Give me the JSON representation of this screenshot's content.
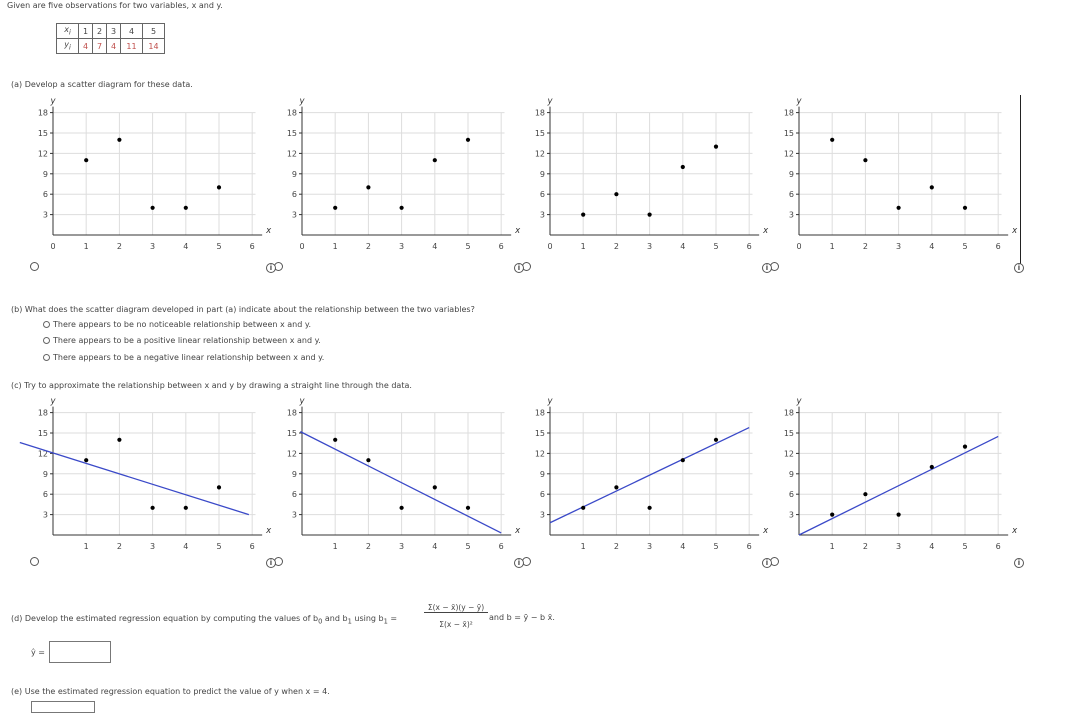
{
  "intro": "Given are five observations for two variables, x and y.",
  "table": {
    "x_label": "x",
    "x_sub": "i",
    "y_label": "y",
    "y_sub": "i",
    "x": [
      "1",
      "2",
      "3",
      "4",
      "5"
    ],
    "y": [
      "4",
      "7",
      "4",
      "11",
      "14"
    ]
  },
  "part_a": "(a)  Develop a scatter diagram for these data.",
  "part_b": {
    "question": "(b)  What does the scatter diagram developed in part (a) indicate about the relationship between the two variables?",
    "options": [
      "There appears to be no noticeable relationship between x and y.",
      "There appears to be a positive linear relationship between x and y.",
      "There appears to be a negative linear relationship between x and y."
    ]
  },
  "part_c": "(c)  Try to approximate the relationship between x and y by drawing a straight line through the data.",
  "part_d": {
    "prefix": "(d)  Develop the estimated regression equation by computing the values of b",
    "mid": "and b",
    "using": "using b",
    "numerator": "Σ(x  − x̄)(y  − ȳ)",
    "denominator": "Σ(x  − x̄)²",
    "suffix": "and b  = ȳ − b x̄.",
    "yhat_label": "ŷ ="
  },
  "part_e": "(e)  Use the estimated regression equation to predict the value of y when x = 4.",
  "axis_labels": {
    "x": "x",
    "y": "y"
  },
  "x_ticks": [
    "0",
    "1",
    "2",
    "3",
    "4",
    "5",
    "6"
  ],
  "y_ticks": [
    "3",
    "6",
    "9",
    "12",
    "15",
    "18"
  ],
  "chart_data": [
    {
      "type": "scatter",
      "xlabel": "x",
      "ylabel": "y",
      "xlim": [
        0,
        6
      ],
      "ylim": [
        0,
        18
      ],
      "points": [
        [
          1,
          11
        ],
        [
          2,
          14
        ],
        [
          3,
          4
        ],
        [
          4,
          4
        ],
        [
          5,
          7
        ]
      ]
    },
    {
      "type": "scatter",
      "xlabel": "x",
      "ylabel": "y",
      "xlim": [
        0,
        6
      ],
      "ylim": [
        0,
        18
      ],
      "points": [
        [
          1,
          4
        ],
        [
          2,
          7
        ],
        [
          3,
          4
        ],
        [
          4,
          11
        ],
        [
          5,
          14
        ]
      ]
    },
    {
      "type": "scatter",
      "xlabel": "x",
      "ylabel": "y",
      "xlim": [
        0,
        6
      ],
      "ylim": [
        0,
        18
      ],
      "points": [
        [
          1,
          3
        ],
        [
          2,
          6
        ],
        [
          3,
          3
        ],
        [
          4,
          10
        ],
        [
          5,
          13
        ]
      ]
    },
    {
      "type": "scatter",
      "xlabel": "x",
      "ylabel": "y",
      "xlim": [
        0,
        6
      ],
      "ylim": [
        0,
        18
      ],
      "points": [
        [
          1,
          14
        ],
        [
          2,
          11
        ],
        [
          3,
          4
        ],
        [
          4,
          7
        ],
        [
          5,
          4
        ]
      ]
    },
    {
      "type": "scatter",
      "xlabel": "x",
      "ylabel": "y",
      "xlim": [
        0,
        6
      ],
      "ylim": [
        0,
        18
      ],
      "points": [
        [
          1,
          11
        ],
        [
          2,
          14
        ],
        [
          3,
          4
        ],
        [
          4,
          4
        ],
        [
          5,
          7
        ]
      ],
      "line": [
        [
          -1,
          13.6
        ],
        [
          5.9,
          3
        ]
      ]
    },
    {
      "type": "scatter",
      "xlabel": "x",
      "ylabel": "y",
      "xlim": [
        0,
        6
      ],
      "ylim": [
        0,
        18
      ],
      "points": [
        [
          1,
          14
        ],
        [
          2,
          11
        ],
        [
          3,
          4
        ],
        [
          4,
          7
        ],
        [
          5,
          4
        ]
      ],
      "line": [
        [
          -0.05,
          15.2
        ],
        [
          6,
          0.3
        ]
      ]
    },
    {
      "type": "scatter",
      "xlabel": "x",
      "ylabel": "y",
      "xlim": [
        0,
        6
      ],
      "ylim": [
        0,
        18
      ],
      "points": [
        [
          1,
          4
        ],
        [
          2,
          7
        ],
        [
          3,
          4
        ],
        [
          4,
          11
        ],
        [
          5,
          14
        ]
      ],
      "line": [
        [
          0,
          1.8
        ],
        [
          6,
          15.8
        ]
      ]
    },
    {
      "type": "scatter",
      "xlabel": "x",
      "ylabel": "y",
      "xlim": [
        0,
        6
      ],
      "ylim": [
        0,
        18
      ],
      "points": [
        [
          1,
          3
        ],
        [
          2,
          6
        ],
        [
          3,
          3
        ],
        [
          4,
          10
        ],
        [
          5,
          13
        ]
      ],
      "line": [
        [
          0,
          0
        ],
        [
          6,
          14.5
        ]
      ]
    }
  ],
  "colors": {
    "line": "#3a49c8",
    "grid": "#dddddd",
    "point": "#000000"
  }
}
